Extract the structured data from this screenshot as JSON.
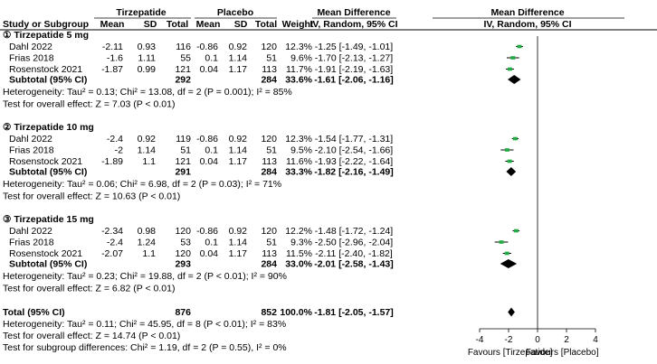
{
  "header": {
    "group_tirzepatide": "Tirzepatide",
    "group_placebo": "Placebo",
    "md_title": "Mean Difference",
    "md_method": "IV, Random, 95% CI",
    "plot_title": "Mean Difference",
    "plot_method": "IV, Random, 95% CI",
    "col_study": "Study or Subgroup",
    "col_mean": "Mean",
    "col_sd": "SD",
    "col_total": "Total",
    "col_mean_p": "Mean",
    "col_sd_p": "SD",
    "col_total_p": "Total",
    "col_weight": "Weight"
  },
  "chart_data": {
    "type": "forest",
    "x_range": [
      -4,
      4
    ],
    "x_ticks": [
      "-4",
      "-2",
      "0",
      "2",
      "4"
    ],
    "x_tick_values": [
      -4,
      -2,
      0,
      2,
      4
    ],
    "favours_left": "Favours [Tirzepatide]",
    "favours_right": "Favours [Placebo]",
    "colors": {
      "study_marker": "#22aa44",
      "diamond": "#000000",
      "line": "#000000"
    },
    "subgroups": [
      {
        "title": "① Tirzepatide 5 mg",
        "studies": [
          {
            "name": "Dahl 2022",
            "mean_t": "-2.11",
            "sd_t": "0.93",
            "n_t": "116",
            "mean_p": "-0.86",
            "sd_p": "0.92",
            "n_p": "120",
            "weight": "12.3%",
            "md_text": "-1.25 [-1.49, -1.01]",
            "md": -1.25,
            "lo": -1.49,
            "hi": -1.01
          },
          {
            "name": "Frias 2018",
            "mean_t": "-1.6",
            "sd_t": "1.11",
            "n_t": "55",
            "mean_p": "0.1",
            "sd_p": "1.14",
            "n_p": "51",
            "weight": "9.6%",
            "md_text": "-1.70 [-2.13, -1.27]",
            "md": -1.7,
            "lo": -2.13,
            "hi": -1.27
          },
          {
            "name": "Rosenstock 2021",
            "mean_t": "-1.87",
            "sd_t": "0.99",
            "n_t": "121",
            "mean_p": "0.04",
            "sd_p": "1.17",
            "n_p": "113",
            "weight": "11.7%",
            "md_text": "-1.91 [-2.19, -1.63]",
            "md": -1.91,
            "lo": -2.19,
            "hi": -1.63
          }
        ],
        "subtotal": {
          "label": "Subtotal (95% CI)",
          "n_t": "292",
          "n_p": "284",
          "weight": "33.6%",
          "md_text": "-1.61 [-2.06, -1.16]",
          "md": -1.61,
          "lo": -2.06,
          "hi": -1.16
        },
        "heterogeneity": "Heterogeneity: Tau² = 0.13; Chi² = 13.08, df = 2 (P = 0.001); I² = 85%",
        "overall_effect": "Test for overall effect: Z = 7.03 (P < 0.01)"
      },
      {
        "title": "② Tirzepatide 10 mg",
        "studies": [
          {
            "name": "Dahl 2022",
            "mean_t": "-2.4",
            "sd_t": "0.92",
            "n_t": "119",
            "mean_p": "-0.86",
            "sd_p": "0.92",
            "n_p": "120",
            "weight": "12.3%",
            "md_text": "-1.54 [-1.77, -1.31]",
            "md": -1.54,
            "lo": -1.77,
            "hi": -1.31
          },
          {
            "name": "Frias 2018",
            "mean_t": "-2",
            "sd_t": "1.14",
            "n_t": "51",
            "mean_p": "0.1",
            "sd_p": "1.14",
            "n_p": "51",
            "weight": "9.5%",
            "md_text": "-2.10 [-2.54, -1.66]",
            "md": -2.1,
            "lo": -2.54,
            "hi": -1.66
          },
          {
            "name": "Rosenstock 2021",
            "mean_t": "-1.89",
            "sd_t": "1.1",
            "n_t": "121",
            "mean_p": "0.04",
            "sd_p": "1.17",
            "n_p": "113",
            "weight": "11.6%",
            "md_text": "-1.93 [-2.22, -1.64]",
            "md": -1.93,
            "lo": -2.22,
            "hi": -1.64
          }
        ],
        "subtotal": {
          "label": "Subtotal (95% CI)",
          "n_t": "291",
          "n_p": "284",
          "weight": "33.3%",
          "md_text": "-1.82 [-2.16, -1.49]",
          "md": -1.82,
          "lo": -2.16,
          "hi": -1.49
        },
        "heterogeneity": "Heterogeneity: Tau² = 0.06; Chi² = 6.98, df = 2 (P = 0.03); I² = 71%",
        "overall_effect": "Test for overall effect: Z = 10.63 (P < 0.01)"
      },
      {
        "title": "③ Tirzepatide 15 mg",
        "studies": [
          {
            "name": "Dahl 2022",
            "mean_t": "-2.34",
            "sd_t": "0.98",
            "n_t": "120",
            "mean_p": "-0.86",
            "sd_p": "0.92",
            "n_p": "120",
            "weight": "12.2%",
            "md_text": "-1.48 [-1.72, -1.24]",
            "md": -1.48,
            "lo": -1.72,
            "hi": -1.24
          },
          {
            "name": "Frias 2018",
            "mean_t": "-2.4",
            "sd_t": "1.24",
            "n_t": "53",
            "mean_p": "0.1",
            "sd_p": "1.14",
            "n_p": "51",
            "weight": "9.3%",
            "md_text": "-2.50 [-2.96, -2.04]",
            "md": -2.5,
            "lo": -2.96,
            "hi": -2.04
          },
          {
            "name": "Rosenstock 2021",
            "mean_t": "-2.07",
            "sd_t": "1.1",
            "n_t": "120",
            "mean_p": "0.04",
            "sd_p": "1.17",
            "n_p": "113",
            "weight": "11.5%",
            "md_text": "-2.11 [-2.40, -1.82]",
            "md": -2.11,
            "lo": -2.4,
            "hi": -1.82
          }
        ],
        "subtotal": {
          "label": "Subtotal (95% CI)",
          "n_t": "293",
          "n_p": "284",
          "weight": "33.0%",
          "md_text": "-2.01 [-2.58, -1.43]",
          "md": -2.01,
          "lo": -2.58,
          "hi": -1.43
        },
        "heterogeneity": "Heterogeneity: Tau² = 0.23; Chi² = 19.88, df = 2 (P < 0.01); I² = 90%",
        "overall_effect": "Test for overall effect: Z = 6.82 (P < 0.01)"
      }
    ],
    "total": {
      "label": "Total (95% CI)",
      "n_t": "876",
      "n_p": "852",
      "weight": "100.0%",
      "md_text": "-1.81 [-2.05, -1.57]",
      "md": -1.81,
      "lo": -2.05,
      "hi": -1.57,
      "heterogeneity": "Heterogeneity: Tau² = 0.11; Chi² = 45.95, df = 8 (P < 0.01); I² = 83%",
      "overall_effect": "Test for overall effect: Z = 14.74 (P < 0.01)",
      "subgroup_diff": "Test for subgroup differences: Chi² = 1.19, df = 2 (P = 0.55), I² = 0%"
    }
  }
}
